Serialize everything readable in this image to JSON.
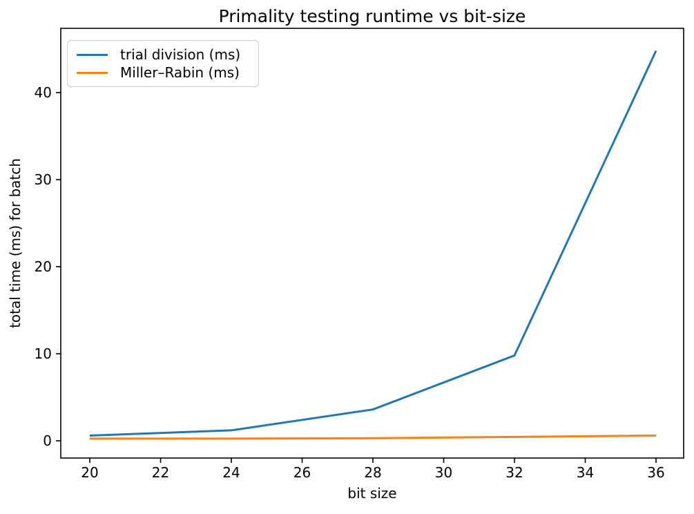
{
  "chart_data": {
    "type": "line",
    "title": "Primality testing runtime vs bit-size",
    "xlabel": "bit size",
    "ylabel": "total time (ms) for batch",
    "x": [
      20,
      24,
      28,
      32,
      36
    ],
    "series": [
      {
        "name": "trial division (ms)",
        "color": "#1f77b4",
        "values": [
          0.6,
          1.2,
          3.6,
          9.8,
          44.8
        ]
      },
      {
        "name": "Miller–Rabin (ms)",
        "color": "#ff7f0e",
        "values": [
          0.25,
          0.25,
          0.3,
          0.45,
          0.6
        ]
      }
    ],
    "xticks": [
      20,
      22,
      24,
      26,
      28,
      30,
      32,
      34,
      36
    ],
    "yticks": [
      0,
      10,
      20,
      30,
      40
    ],
    "xlim": [
      19.18,
      36.78
    ],
    "ylim": [
      -1.98,
      47.38
    ],
    "grid": false,
    "legend_position": "upper left",
    "axis_color": "#000000",
    "background_color": "#ffffff",
    "line_width": 3
  }
}
